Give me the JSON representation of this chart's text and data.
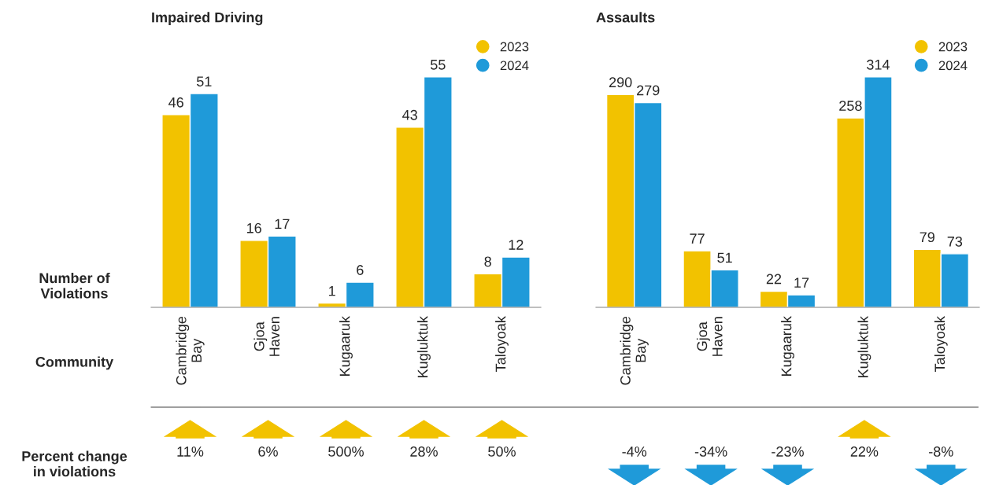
{
  "chart_data": [
    {
      "type": "bar",
      "title": "Impaired Driving",
      "ylabel": "Number of\nViolations",
      "xlabel": "Community",
      "categories": [
        "Cambridge\nBay",
        "Gjoa\nHaven",
        "Kugaaruk",
        "Kugluktuk",
        "Taloyoak"
      ],
      "series": [
        {
          "name": "2023",
          "color": "#f2c200",
          "values": [
            46,
            16,
            1,
            43,
            8
          ]
        },
        {
          "name": "2024",
          "color": "#1f9ad9",
          "values": [
            51,
            17,
            6,
            55,
            12
          ]
        }
      ],
      "data_labels": true,
      "legend": "top right",
      "tick_labels": "x",
      "annotations": [
        "Percent change\nin violations",
        "11%",
        "6%",
        "500%",
        "28%",
        "50%"
      ]
    },
    {
      "type": "bar",
      "title": "Assaults",
      "categories": [
        "Cambridge\nBay",
        "Gjoa\nHaven",
        "Kugaaruk",
        "Kugluktuk",
        "Taloyoak"
      ],
      "series": [
        {
          "name": "2023",
          "color": "#f2c200",
          "values": [
            290,
            77,
            22,
            258,
            79
          ]
        },
        {
          "name": "2024",
          "color": "#1f9ad9",
          "values": [
            279,
            51,
            17,
            314,
            73
          ]
        }
      ],
      "data_labels": true,
      "legend": "top right",
      "tick_labels": "x",
      "annotations": [
        "-4%",
        "-34%",
        "-23%",
        "22%",
        "-8%"
      ]
    }
  ]
}
